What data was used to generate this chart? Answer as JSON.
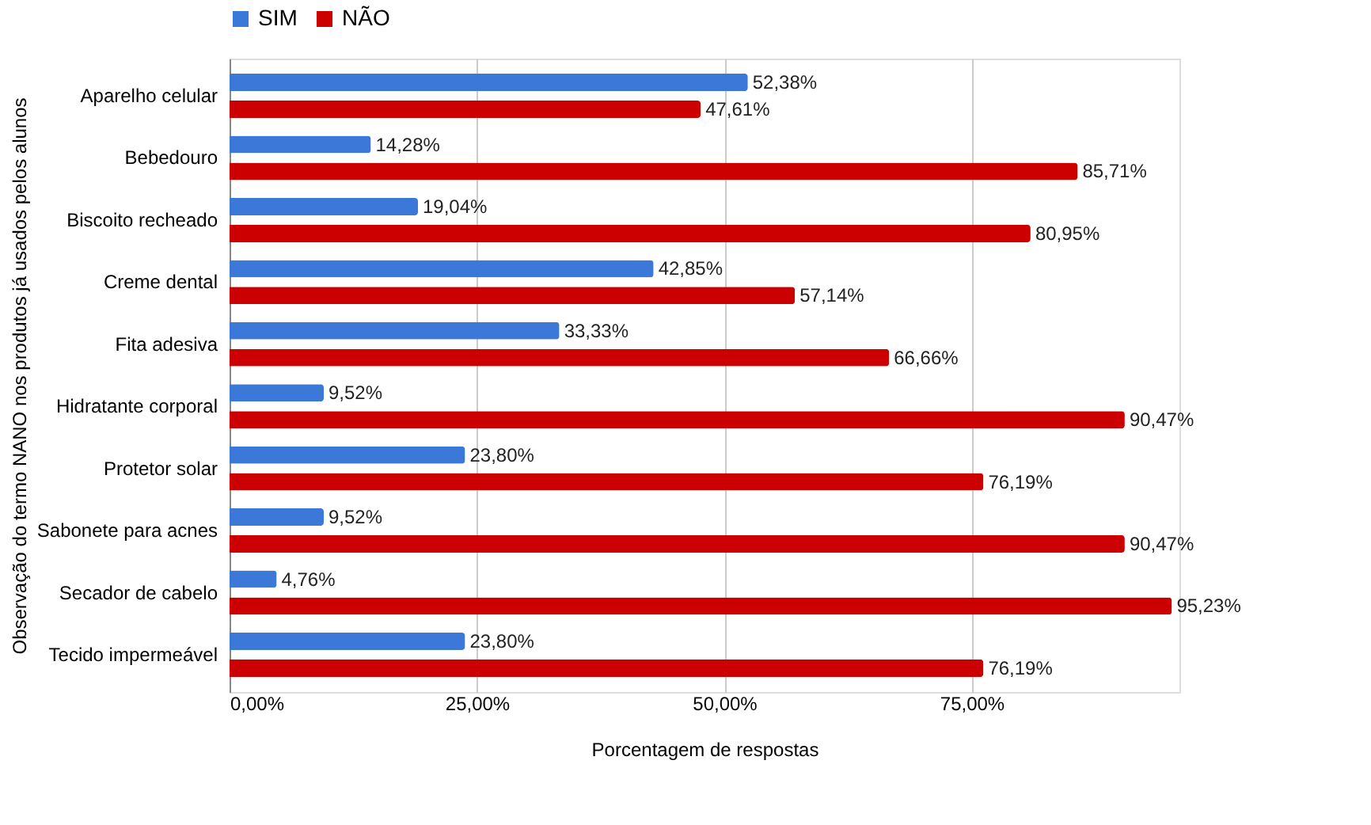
{
  "chart_data": {
    "type": "bar",
    "orientation": "horizontal",
    "xlabel": "Porcentagem de respostas",
    "ylabel": "Observação do termo NANO nos produtos já usados pelos alunos",
    "categories": [
      "Aparelho celular",
      "Bebedouro",
      "Biscoito recheado",
      "Creme dental",
      "Fita adesiva",
      "Hidratante corporal",
      "Protetor solar",
      "Sabonete para acnes",
      "Secador de cabelo",
      "Tecido impermeável"
    ],
    "series": [
      {
        "name": "SIM",
        "color": "#3c78d8",
        "values": [
          52.38,
          14.28,
          19.04,
          42.85,
          33.33,
          9.52,
          23.8,
          9.52,
          4.76,
          23.8
        ],
        "value_labels": [
          "52,38%",
          "14,28%",
          "19,04%",
          "42,85%",
          "33,33%",
          "9,52%",
          "23,80%",
          "9,52%",
          "4,76%",
          "23,80%"
        ]
      },
      {
        "name": "NÃO",
        "color": "#cc0000",
        "values": [
          47.61,
          85.71,
          80.95,
          57.14,
          66.66,
          90.47,
          76.19,
          90.47,
          95.23,
          76.19
        ],
        "value_labels": [
          "47,61%",
          "85,71%",
          "80,95%",
          "57,14%",
          "66,66%",
          "90,47%",
          "76,19%",
          "90,47%",
          "95,23%",
          "76,19%"
        ]
      }
    ],
    "xlim": [
      0,
      96
    ],
    "xticks": [
      {
        "value": 0,
        "label": "0,00%"
      },
      {
        "value": 25,
        "label": "25,00%"
      },
      {
        "value": 50,
        "label": "50,00%"
      },
      {
        "value": 75,
        "label": "75,00%"
      }
    ],
    "grid": "x",
    "legend": "top"
  }
}
